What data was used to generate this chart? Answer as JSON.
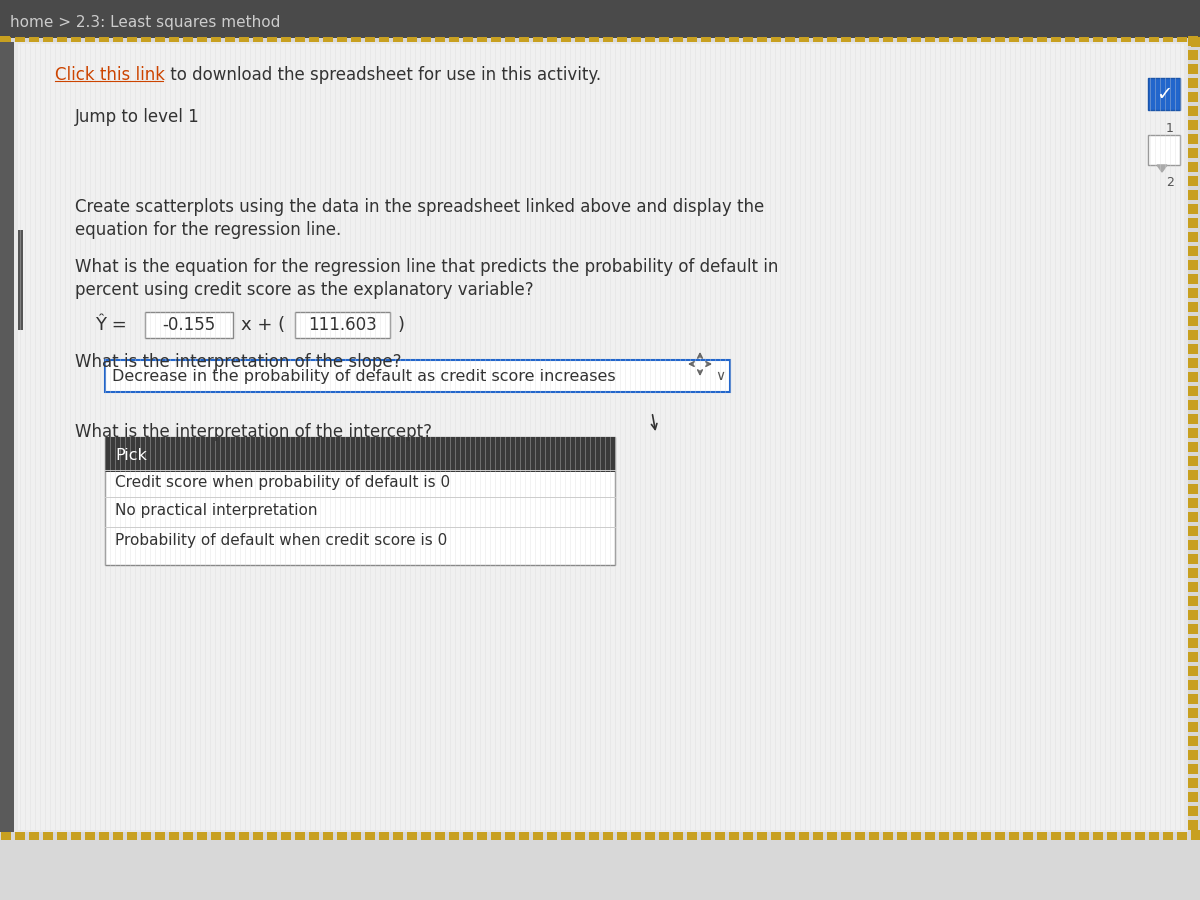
{
  "bg_color": "#d8d8d8",
  "title_bar_color": "#4a4a4a",
  "title_text": "home > 2.3: Least squares method",
  "link_text": "Click this link",
  "link_color": "#cc4400",
  "link_after": " to download the spreadsheet for use in this activity.",
  "jump_text": "Jump to level 1",
  "body_text_1": "Create scatterplots using the data in the spreadsheet linked above and display the",
  "body_text_2": "equation for the regression line.",
  "question1_line1": "What is the equation for the regression line that predicts the probability of default in",
  "question1_line2": "percent using credit score as the explanatory variable?",
  "eq_prefix": "Ŷ = ",
  "eq_slope_box": "-0.155",
  "eq_middle": "x + (",
  "eq_intercept_box": "111.603",
  "eq_suffix": ")",
  "question2": "What is the interpretation of the slope?",
  "slope_answer": "Decrease in the probability of default as credit score increases",
  "question3": "What is the interpretation of the intercept?",
  "dropdown_pick": "Pick",
  "dropdown_options": [
    "Credit score when probability of default is 0",
    "No practical interpretation",
    "Probability of default when credit score is 0"
  ],
  "sidebar_check_color": "#2266cc",
  "sidebar_1": "1",
  "sidebar_2": "2",
  "left_bar_color": "#5a5a5a",
  "stripe_color": "#c8a020"
}
